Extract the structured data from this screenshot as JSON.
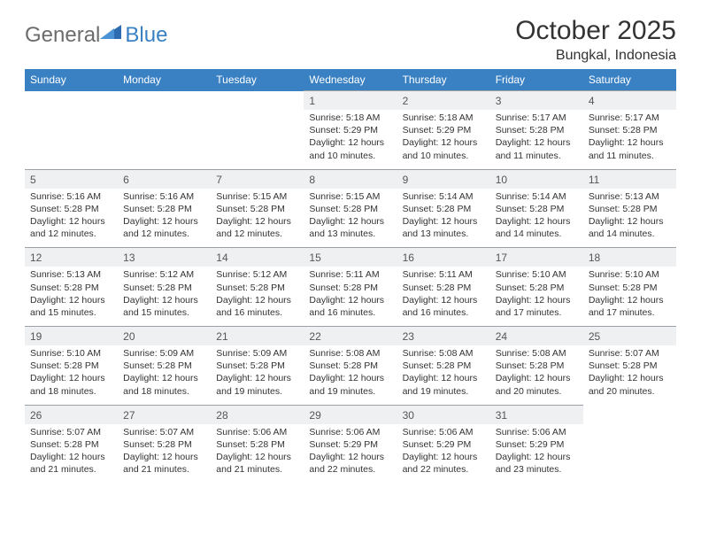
{
  "logo": {
    "general": "General",
    "blue": "Blue"
  },
  "title": "October 2025",
  "location": "Bungkal, Indonesia",
  "colors": {
    "header_bg": "#3a81c4",
    "header_fg": "#ffffff",
    "daynum_bg": "#eef0f2",
    "text": "#333333",
    "logo_gray": "#6c6c6c",
    "logo_blue": "#3a81c4",
    "rule": "#9aa0a6"
  },
  "dow": [
    "Sunday",
    "Monday",
    "Tuesday",
    "Wednesday",
    "Thursday",
    "Friday",
    "Saturday"
  ],
  "weeks": [
    {
      "nums": [
        "",
        "",
        "",
        "1",
        "2",
        "3",
        "4"
      ],
      "cells": [
        null,
        null,
        null,
        {
          "sunrise": "5:18 AM",
          "sunset": "5:29 PM",
          "daylight": "12 hours and 10 minutes."
        },
        {
          "sunrise": "5:18 AM",
          "sunset": "5:29 PM",
          "daylight": "12 hours and 10 minutes."
        },
        {
          "sunrise": "5:17 AM",
          "sunset": "5:28 PM",
          "daylight": "12 hours and 11 minutes."
        },
        {
          "sunrise": "5:17 AM",
          "sunset": "5:28 PM",
          "daylight": "12 hours and 11 minutes."
        }
      ]
    },
    {
      "nums": [
        "5",
        "6",
        "7",
        "8",
        "9",
        "10",
        "11"
      ],
      "cells": [
        {
          "sunrise": "5:16 AM",
          "sunset": "5:28 PM",
          "daylight": "12 hours and 12 minutes."
        },
        {
          "sunrise": "5:16 AM",
          "sunset": "5:28 PM",
          "daylight": "12 hours and 12 minutes."
        },
        {
          "sunrise": "5:15 AM",
          "sunset": "5:28 PM",
          "daylight": "12 hours and 12 minutes."
        },
        {
          "sunrise": "5:15 AM",
          "sunset": "5:28 PM",
          "daylight": "12 hours and 13 minutes."
        },
        {
          "sunrise": "5:14 AM",
          "sunset": "5:28 PM",
          "daylight": "12 hours and 13 minutes."
        },
        {
          "sunrise": "5:14 AM",
          "sunset": "5:28 PM",
          "daylight": "12 hours and 14 minutes."
        },
        {
          "sunrise": "5:13 AM",
          "sunset": "5:28 PM",
          "daylight": "12 hours and 14 minutes."
        }
      ]
    },
    {
      "nums": [
        "12",
        "13",
        "14",
        "15",
        "16",
        "17",
        "18"
      ],
      "cells": [
        {
          "sunrise": "5:13 AM",
          "sunset": "5:28 PM",
          "daylight": "12 hours and 15 minutes."
        },
        {
          "sunrise": "5:12 AM",
          "sunset": "5:28 PM",
          "daylight": "12 hours and 15 minutes."
        },
        {
          "sunrise": "5:12 AM",
          "sunset": "5:28 PM",
          "daylight": "12 hours and 16 minutes."
        },
        {
          "sunrise": "5:11 AM",
          "sunset": "5:28 PM",
          "daylight": "12 hours and 16 minutes."
        },
        {
          "sunrise": "5:11 AM",
          "sunset": "5:28 PM",
          "daylight": "12 hours and 16 minutes."
        },
        {
          "sunrise": "5:10 AM",
          "sunset": "5:28 PM",
          "daylight": "12 hours and 17 minutes."
        },
        {
          "sunrise": "5:10 AM",
          "sunset": "5:28 PM",
          "daylight": "12 hours and 17 minutes."
        }
      ]
    },
    {
      "nums": [
        "19",
        "20",
        "21",
        "22",
        "23",
        "24",
        "25"
      ],
      "cells": [
        {
          "sunrise": "5:10 AM",
          "sunset": "5:28 PM",
          "daylight": "12 hours and 18 minutes."
        },
        {
          "sunrise": "5:09 AM",
          "sunset": "5:28 PM",
          "daylight": "12 hours and 18 minutes."
        },
        {
          "sunrise": "5:09 AM",
          "sunset": "5:28 PM",
          "daylight": "12 hours and 19 minutes."
        },
        {
          "sunrise": "5:08 AM",
          "sunset": "5:28 PM",
          "daylight": "12 hours and 19 minutes."
        },
        {
          "sunrise": "5:08 AM",
          "sunset": "5:28 PM",
          "daylight": "12 hours and 19 minutes."
        },
        {
          "sunrise": "5:08 AM",
          "sunset": "5:28 PM",
          "daylight": "12 hours and 20 minutes."
        },
        {
          "sunrise": "5:07 AM",
          "sunset": "5:28 PM",
          "daylight": "12 hours and 20 minutes."
        }
      ]
    },
    {
      "nums": [
        "26",
        "27",
        "28",
        "29",
        "30",
        "31",
        ""
      ],
      "cells": [
        {
          "sunrise": "5:07 AM",
          "sunset": "5:28 PM",
          "daylight": "12 hours and 21 minutes."
        },
        {
          "sunrise": "5:07 AM",
          "sunset": "5:28 PM",
          "daylight": "12 hours and 21 minutes."
        },
        {
          "sunrise": "5:06 AM",
          "sunset": "5:28 PM",
          "daylight": "12 hours and 21 minutes."
        },
        {
          "sunrise": "5:06 AM",
          "sunset": "5:29 PM",
          "daylight": "12 hours and 22 minutes."
        },
        {
          "sunrise": "5:06 AM",
          "sunset": "5:29 PM",
          "daylight": "12 hours and 22 minutes."
        },
        {
          "sunrise": "5:06 AM",
          "sunset": "5:29 PM",
          "daylight": "12 hours and 23 minutes."
        },
        null
      ]
    }
  ],
  "labels": {
    "sunrise": "Sunrise:",
    "sunset": "Sunset:",
    "daylight": "Daylight:"
  }
}
